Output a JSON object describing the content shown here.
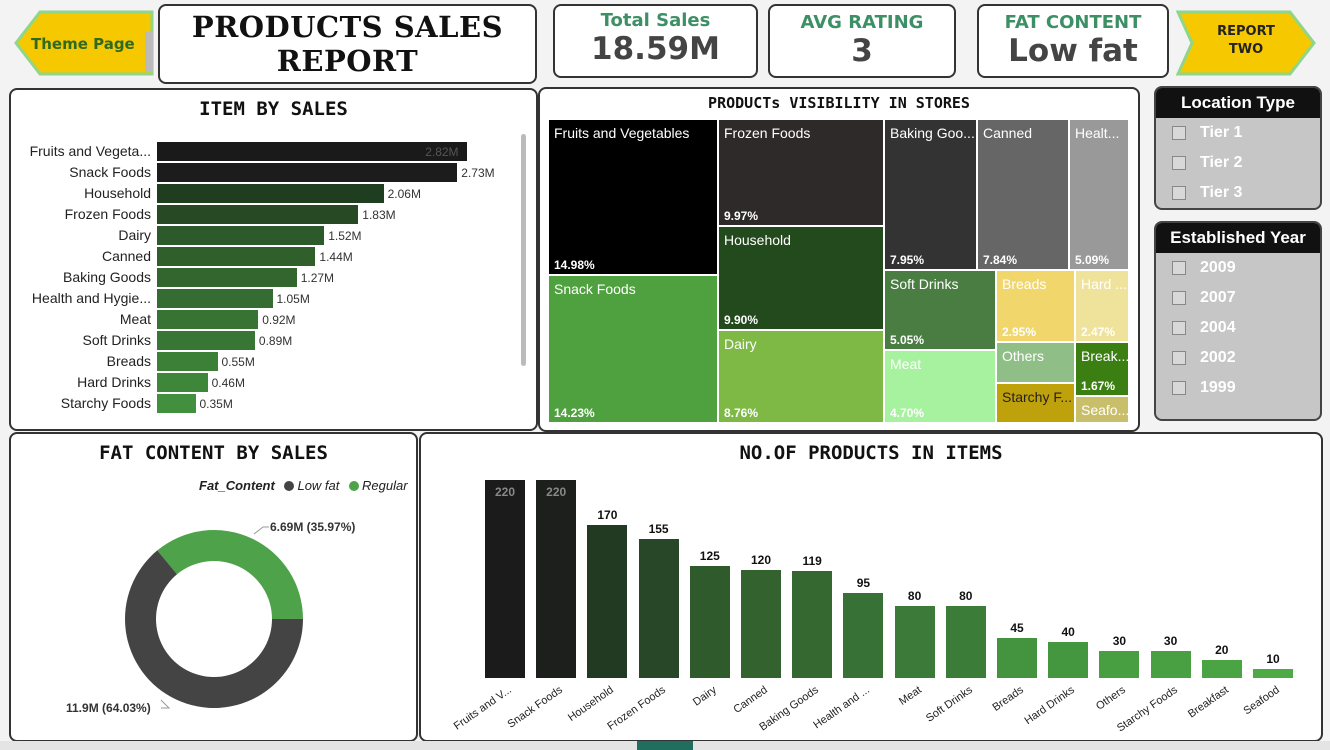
{
  "header": {
    "theme_button": "Theme Page",
    "report_button": "REPORT TWO",
    "title": "PRODUCTS SALES REPORT"
  },
  "kpis": [
    {
      "label": "Total Sales",
      "value": "18.59M"
    },
    {
      "label": "AVG RATING",
      "value": "3"
    },
    {
      "label": "FAT CONTENT",
      "value": "Low fat"
    }
  ],
  "item_by_sales": {
    "title": "ITEM BY SALES",
    "rows": [
      {
        "label": "Fruits and Vegeta...",
        "value": 2.82,
        "display": "2.82M",
        "color": "#1a1a1a"
      },
      {
        "label": "Snack Foods",
        "value": 2.73,
        "display": "2.73M",
        "color": "#1c1c1c"
      },
      {
        "label": "Household",
        "value": 2.06,
        "display": "2.06M",
        "color": "#1f3d1f"
      },
      {
        "label": "Frozen Foods",
        "value": 1.83,
        "display": "1.83M",
        "color": "#274a25"
      },
      {
        "label": "Dairy",
        "value": 1.52,
        "display": "1.52M",
        "color": "#2d5a2a"
      },
      {
        "label": "Canned",
        "value": 1.44,
        "display": "1.44M",
        "color": "#2f5f2b"
      },
      {
        "label": "Baking Goods",
        "value": 1.27,
        "display": "1.27M",
        "color": "#33662e"
      },
      {
        "label": "Health and Hygie...",
        "value": 1.05,
        "display": "1.05M",
        "color": "#356c31"
      },
      {
        "label": "Meat",
        "value": 0.92,
        "display": "0.92M",
        "color": "#377333"
      },
      {
        "label": "Soft Drinks",
        "value": 0.89,
        "display": "0.89M",
        "color": "#387635"
      },
      {
        "label": "Breads",
        "value": 0.55,
        "display": "0.55M",
        "color": "#3c8038"
      },
      {
        "label": "Hard Drinks",
        "value": 0.46,
        "display": "0.46M",
        "color": "#3e873a"
      },
      {
        "label": "Starchy Foods",
        "value": 0.35,
        "display": "0.35M",
        "color": "#42903d"
      }
    ],
    "max": 3.0
  },
  "treemap": {
    "title": "PRODUCTs VISIBILITY IN STORES",
    "cells": [
      {
        "name": "Fruits and Vegetables",
        "pct": "14.98%",
        "bg": "#000000",
        "fg": "#ffffff"
      },
      {
        "name": "Snack Foods",
        "pct": "14.23%",
        "bg": "#4fa03f",
        "fg": "#ffffff"
      },
      {
        "name": "Frozen Foods",
        "pct": "9.97%",
        "bg": "#2f2a2a",
        "fg": "#ffffff"
      },
      {
        "name": "Household",
        "pct": "9.90%",
        "bg": "#234a1c",
        "fg": "#ffffff"
      },
      {
        "name": "Dairy",
        "pct": "8.76%",
        "bg": "#7db944",
        "fg": "#ffffff"
      },
      {
        "name": "Baking Goo...",
        "pct": "7.95%",
        "bg": "#333333",
        "fg": "#ffffff"
      },
      {
        "name": "Canned",
        "pct": "7.84%",
        "bg": "#666666",
        "fg": "#ffffff"
      },
      {
        "name": "Healt...",
        "pct": "5.09%",
        "bg": "#999999",
        "fg": "#ffffff"
      },
      {
        "name": "Soft Drinks",
        "pct": "5.05%",
        "bg": "#4a7d42",
        "fg": "#ffffff"
      },
      {
        "name": "Breads",
        "pct": "2.95%",
        "bg": "#f0d66b",
        "fg": "#ffffff"
      },
      {
        "name": "Hard ...",
        "pct": "2.47%",
        "bg": "#efe39c",
        "fg": "#ffffff"
      },
      {
        "name": "Meat",
        "pct": "4.70%",
        "bg": "#a6f29e",
        "fg": "#ffffff"
      },
      {
        "name": "Others",
        "pct": "",
        "bg": "#8fbf86",
        "fg": "#ffffff"
      },
      {
        "name": "Break...",
        "pct": "1.67%",
        "bg": "#3b7f12",
        "fg": "#ffffff"
      },
      {
        "name": "Starchy F...",
        "pct": "",
        "bg": "#bfa10b",
        "fg": "#222222"
      },
      {
        "name": "Seafo...",
        "pct": "",
        "bg": "#c9bf6a",
        "fg": "#ffffff"
      }
    ]
  },
  "slicers": {
    "location": {
      "title": "Location Type",
      "options": [
        "Tier 1",
        "Tier 2",
        "Tier 3"
      ]
    },
    "year": {
      "title": "Established Year",
      "options": [
        "2009",
        "2007",
        "2004",
        "2002",
        "1999"
      ]
    }
  },
  "fat_content": {
    "title": "FAT CONTENT BY SALES",
    "legend_title": "Fat_Content",
    "legend": [
      {
        "name": "Low fat",
        "color": "#444444"
      },
      {
        "name": "Regular",
        "color": "#4ea34a"
      }
    ],
    "low_label": "11.9M (64.03%)",
    "regular_label": "6.69M (35.97%)",
    "chart_data": {
      "type": "pie",
      "categories": [
        "Low fat",
        "Regular"
      ],
      "values": [
        11.9,
        6.69
      ],
      "percent": [
        64.03,
        35.97
      ]
    }
  },
  "products_in_items": {
    "title": "NO.OF PRODUCTS IN ITEMS",
    "chart_data": {
      "type": "bar",
      "categories": [
        "Fruits and V...",
        "Snack Foods",
        "Household",
        "Frozen Foods",
        "Dairy",
        "Canned",
        "Baking Goods",
        "Health and ...",
        "Meat",
        "Soft Drinks",
        "Breads",
        "Hard Drinks",
        "Others",
        "Starchy Foods",
        "Breakfast",
        "Seafood"
      ],
      "values": [
        220,
        220,
        170,
        155,
        125,
        120,
        119,
        95,
        80,
        80,
        45,
        40,
        30,
        30,
        20,
        10
      ],
      "colors": [
        "#1b1b1b",
        "#1c1f1c",
        "#223a22",
        "#284628",
        "#2f5a2c",
        "#33622f",
        "#356730",
        "#387135",
        "#3b7a38",
        "#3c7c39",
        "#43933f",
        "#45973f",
        "#489f42",
        "#48a042",
        "#4aa443",
        "#4daa45"
      ]
    }
  }
}
